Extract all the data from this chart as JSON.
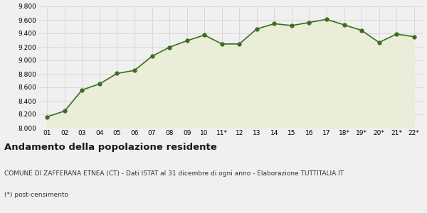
{
  "x_labels": [
    "01",
    "02",
    "03",
    "04",
    "05",
    "06",
    "07",
    "08",
    "09",
    "10",
    "11*",
    "12",
    "13",
    "14",
    "15",
    "16",
    "17",
    "18*",
    "19*",
    "20*",
    "21*",
    "22*"
  ],
  "y_values": [
    8163,
    8249,
    8561,
    8651,
    8806,
    8851,
    9060,
    9194,
    9291,
    9375,
    9243,
    9243,
    9466,
    9543,
    9516,
    9562,
    9608,
    9526,
    9445,
    9265,
    9390,
    9350
  ],
  "line_color": "#3a6e1f",
  "fill_color": "#eaedd8",
  "marker_color": "#3a6e1f",
  "background_color": "#f0f0f0",
  "grid_color": "#d0d0d0",
  "ylim": [
    8000,
    9800
  ],
  "yticks": [
    8000,
    8200,
    8400,
    8600,
    8800,
    9000,
    9200,
    9400,
    9600,
    9800
  ],
  "title": "Andamento della popolazione residente",
  "subtitle": "COMUNE DI ZAFFERANA ETNEA (CT) - Dati ISTAT al 31 dicembre di ogni anno - Elaborazione TUTTITALIA.IT",
  "footnote": "(*) post-censimento",
  "title_fontsize": 9.5,
  "subtitle_fontsize": 6.5,
  "footnote_fontsize": 6.5
}
